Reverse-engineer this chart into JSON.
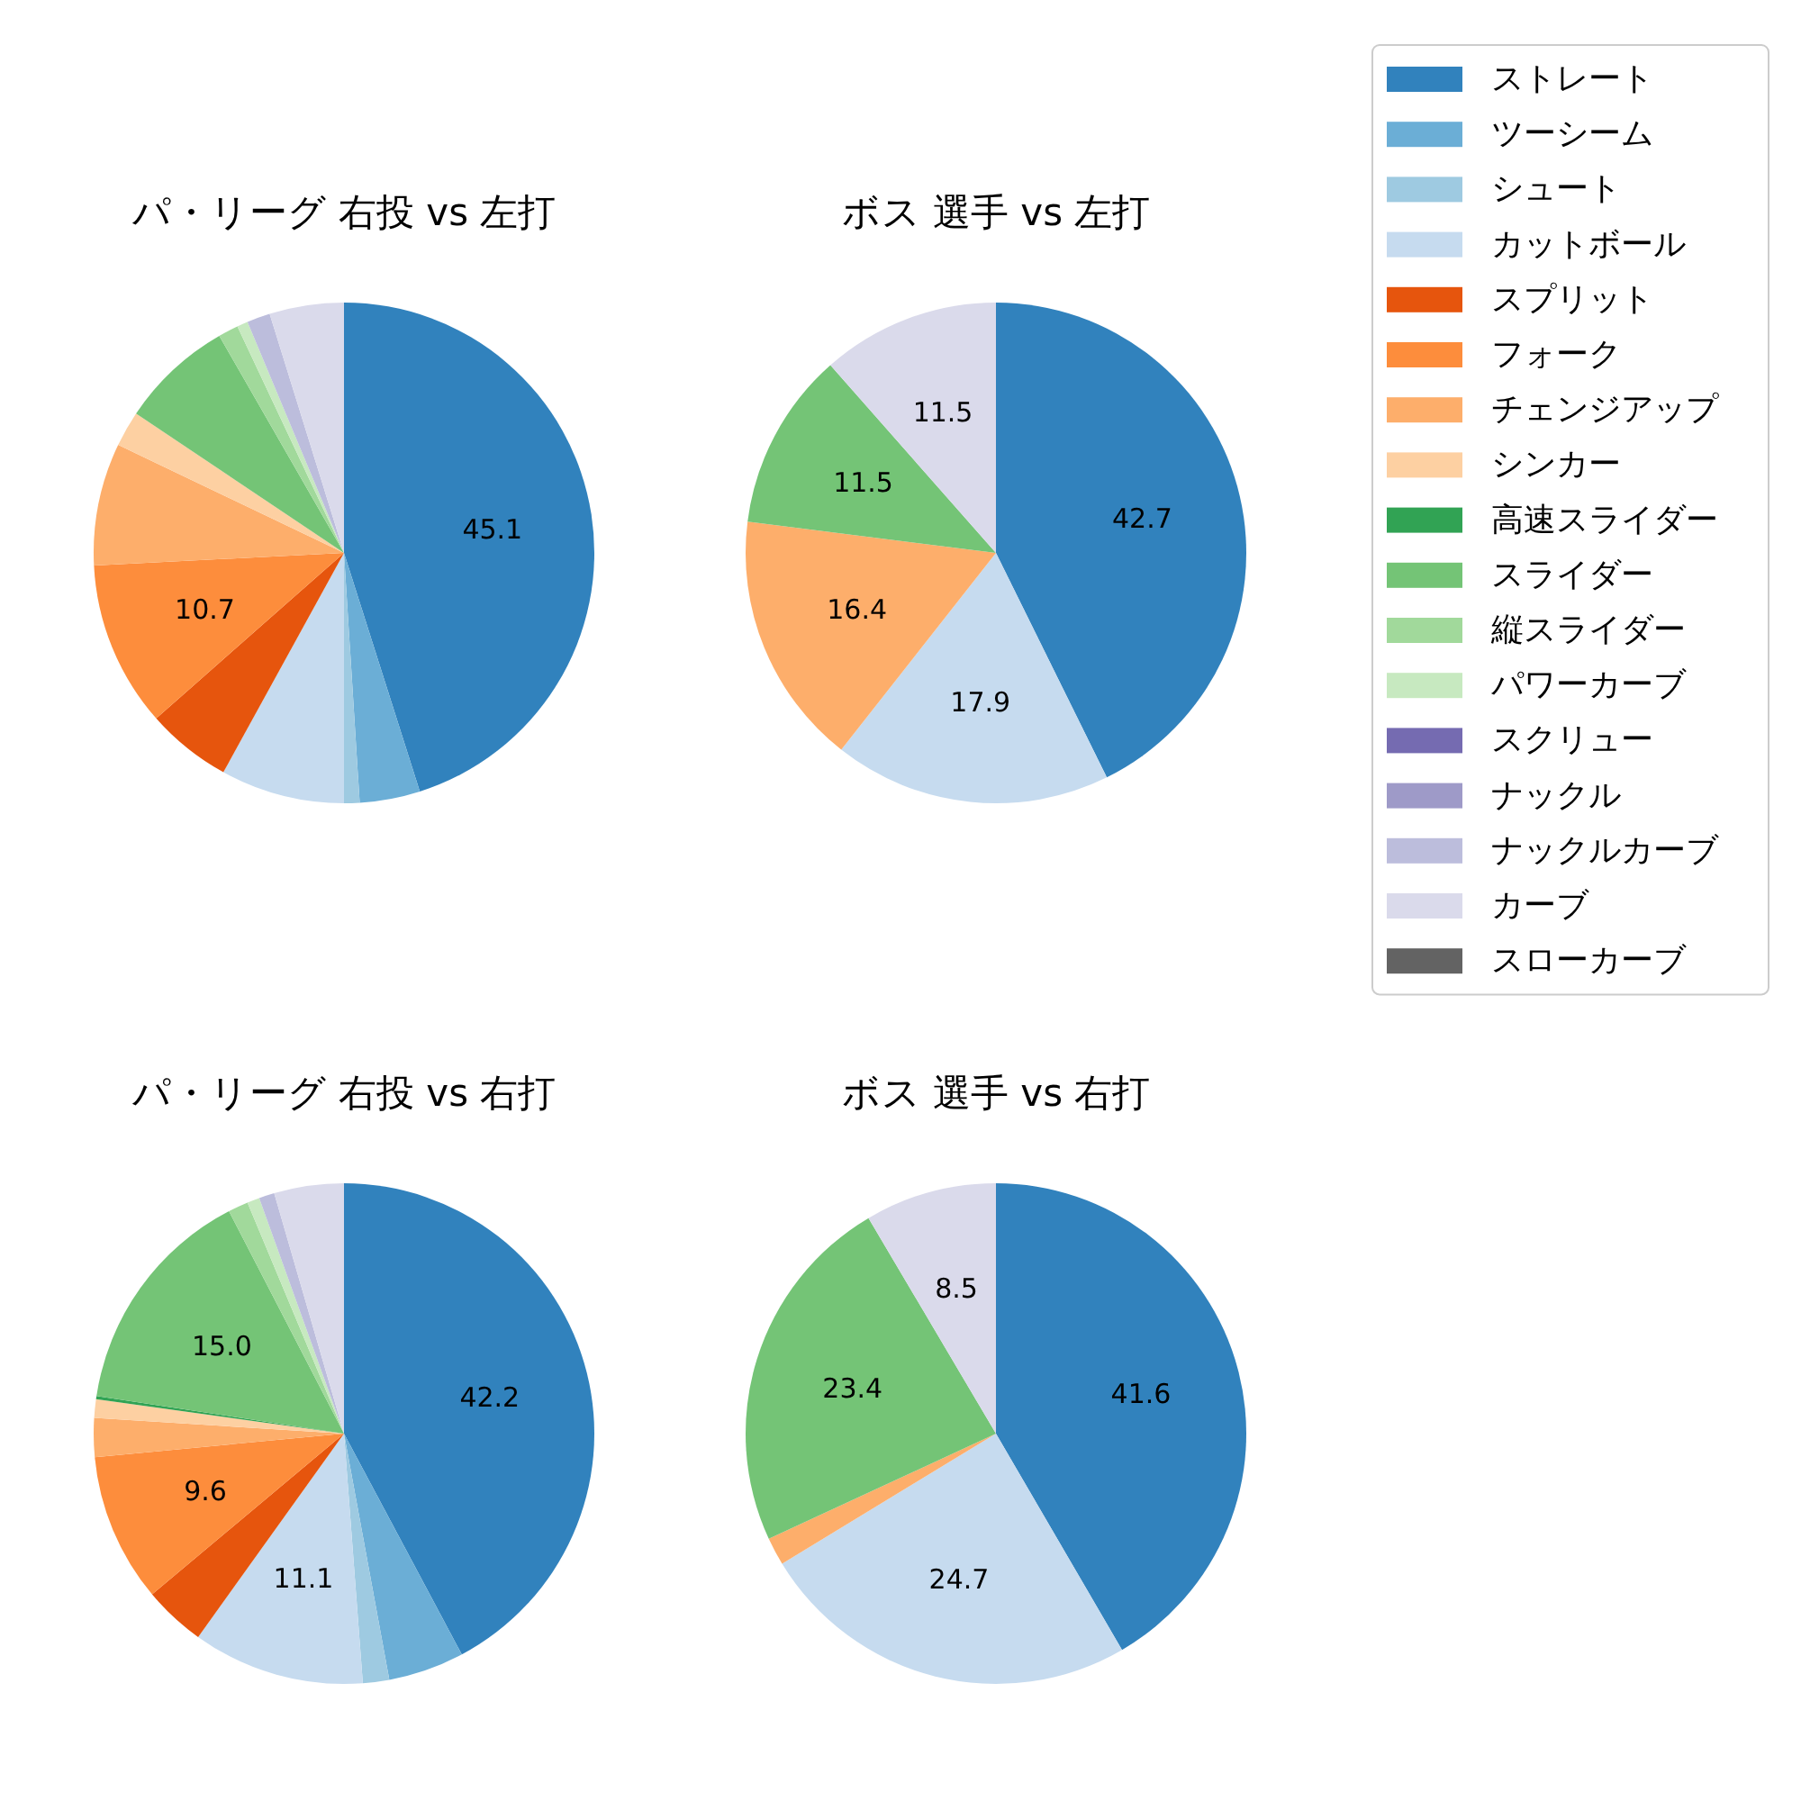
{
  "chart_data": [
    {
      "type": "pie",
      "title": "パ・リーグ 右投 vs 左打",
      "categories": [
        null,
        null,
        null,
        null,
        null,
        null,
        null,
        null,
        null,
        null,
        null,
        null,
        null
      ],
      "values": [
        45.1,
        3.9,
        1.0,
        8.0,
        5.5,
        10.7,
        7.9,
        2.3,
        7.3,
        1.3,
        0.7,
        1.5,
        4.8
      ],
      "value_labels": [
        "45.1",
        null,
        null,
        null,
        null,
        "10.7",
        null,
        null,
        null,
        null,
        null,
        null,
        null
      ],
      "colors": [
        "#3182bd",
        "#6baed6",
        "#9ecae1",
        "#c6dbef",
        "#e6550d",
        "#fd8d3c",
        "#fdae6b",
        "#fdd0a2",
        "#74c476",
        "#a1d99b",
        "#c7e9c0",
        "#bcbddc",
        "#dadaeb"
      ]
    },
    {
      "type": "pie",
      "title": "ボス 選手 vs 左打",
      "legend": "right",
      "categories": [
        "ストレート",
        "ツーシーム",
        "シュート",
        "カットボール",
        "スプリット",
        "フォーク",
        "チェンジアップ",
        "シンカー",
        "高速スライダー",
        "スライダー",
        "縦スライダー",
        "パワーカーブ",
        "スクリュー",
        "ナックル",
        "ナックルカーブ",
        "カーブ",
        "スローカーブ"
      ],
      "values": [
        42.7,
        0,
        0,
        17.9,
        0,
        0,
        16.4,
        0,
        0,
        11.5,
        0,
        0,
        0,
        0,
        0,
        11.5,
        0
      ],
      "value_labels": [
        "42.7",
        null,
        null,
        "17.9",
        null,
        null,
        "16.4",
        null,
        null,
        "11.5",
        null,
        null,
        null,
        null,
        null,
        "11.5",
        null
      ],
      "colors": [
        "#3182bd",
        "#6baed6",
        "#9ecae1",
        "#c6dbef",
        "#e6550d",
        "#fd8d3c",
        "#fdae6b",
        "#fdd0a2",
        "#31a354",
        "#74c476",
        "#a1d99b",
        "#c7e9c0",
        "#756bb1",
        "#9e9ac8",
        "#bcbddc",
        "#dadaeb",
        "#636363"
      ]
    },
    {
      "type": "pie",
      "title": "パ・リーグ 右投 vs 右打",
      "categories": [
        null,
        null,
        null,
        null,
        null,
        null,
        null,
        null,
        null,
        null,
        null,
        null,
        null,
        null
      ],
      "values": [
        42.2,
        4.9,
        1.7,
        11.1,
        4.0,
        9.6,
        2.5,
        1.2,
        0.2,
        15.0,
        1.3,
        0.8,
        1.0,
        4.5
      ],
      "value_labels": [
        "42.2",
        null,
        null,
        "11.1",
        null,
        "9.6",
        null,
        null,
        null,
        "15.0",
        null,
        null,
        null,
        null
      ],
      "colors": [
        "#3182bd",
        "#6baed6",
        "#9ecae1",
        "#c6dbef",
        "#e6550d",
        "#fd8d3c",
        "#fdae6b",
        "#fdd0a2",
        "#31a354",
        "#74c476",
        "#a1d99b",
        "#c7e9c0",
        "#bcbddc",
        "#dadaeb"
      ]
    },
    {
      "type": "pie",
      "title": "ボス 選手 vs 右打",
      "categories": [
        null,
        null,
        null,
        null,
        null
      ],
      "values": [
        41.6,
        24.7,
        1.8,
        23.4,
        8.5
      ],
      "value_labels": [
        "41.6",
        "24.7",
        null,
        "23.4",
        "8.5"
      ],
      "colors": [
        "#3182bd",
        "#c6dbef",
        "#fdae6b",
        "#74c476",
        "#dadaeb"
      ]
    }
  ]
}
